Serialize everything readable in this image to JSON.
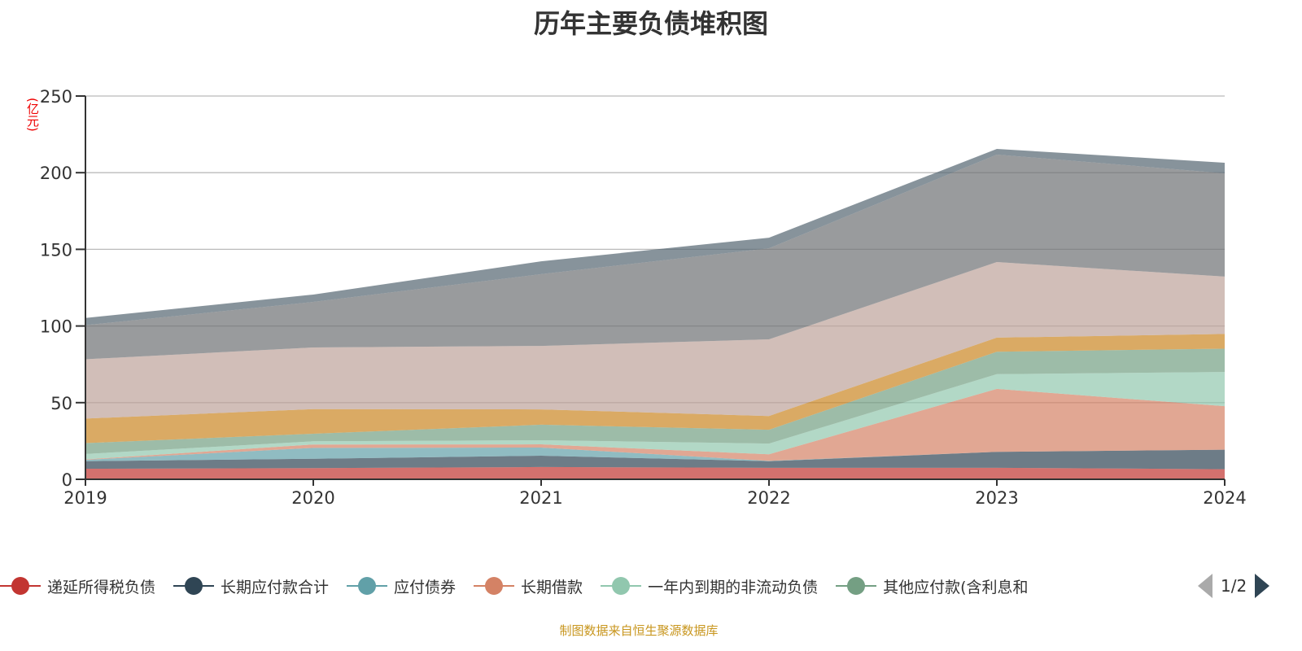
{
  "title": "历年主要负债堆积图",
  "unit_label": "(亿元)",
  "legend_page": "1/2",
  "source": "制图数据来自恒生聚源数据库",
  "chart_data": {
    "type": "area",
    "stacked": true,
    "categories": [
      "2019",
      "2020",
      "2021",
      "2022",
      "2023",
      "2024"
    ],
    "ylim": [
      0,
      250
    ],
    "yticks": [
      0,
      50,
      100,
      150,
      200,
      250
    ],
    "ylabel": "(亿元)",
    "grid": true,
    "legend_placement": "bottom",
    "series": [
      {
        "name": "递延所得税负债",
        "color": "#c23531",
        "values": [
          6.9,
          7.3,
          8.0,
          7.5,
          7.5,
          6.6
        ]
      },
      {
        "name": "长期应付款合计",
        "color": "#2f4554",
        "values": [
          4.9,
          6.1,
          7.4,
          4.3,
          10.4,
          12.7
        ]
      },
      {
        "name": "应付债券",
        "color": "#61a0a8",
        "values": [
          0.9,
          7.1,
          5.3,
          0.2,
          0,
          0
        ]
      },
      {
        "name": "长期借款",
        "color": "#d48265",
        "values": [
          0.3,
          2.2,
          2.1,
          4.3,
          41.1,
          28.4
        ]
      },
      {
        "name": "一年内到期的非流动负债",
        "color": "#91c7ae",
        "values": [
          3.5,
          2.1,
          2.7,
          7.0,
          9.6,
          22.3
        ]
      },
      {
        "name": "其他应付款(含利息和",
        "color": "#749f83",
        "values": [
          7.1,
          4.9,
          10.1,
          9.0,
          14.6,
          15.2
        ]
      },
      {
        "color": "#ca8622",
        "values": [
          16.0,
          16.1,
          10.0,
          9.0,
          9.2,
          9.6
        ]
      },
      {
        "color": "#bda29a",
        "values": [
          38.7,
          40.2,
          41.4,
          50.0,
          49.3,
          37.4
        ]
      },
      {
        "color": "#6e7074",
        "values": [
          22.2,
          29.7,
          46.8,
          59.4,
          70.1,
          67.4
        ]
      },
      {
        "color": "#546570",
        "values": [
          4.7,
          4.8,
          8.4,
          6.9,
          3.7,
          6.9
        ]
      }
    ]
  }
}
